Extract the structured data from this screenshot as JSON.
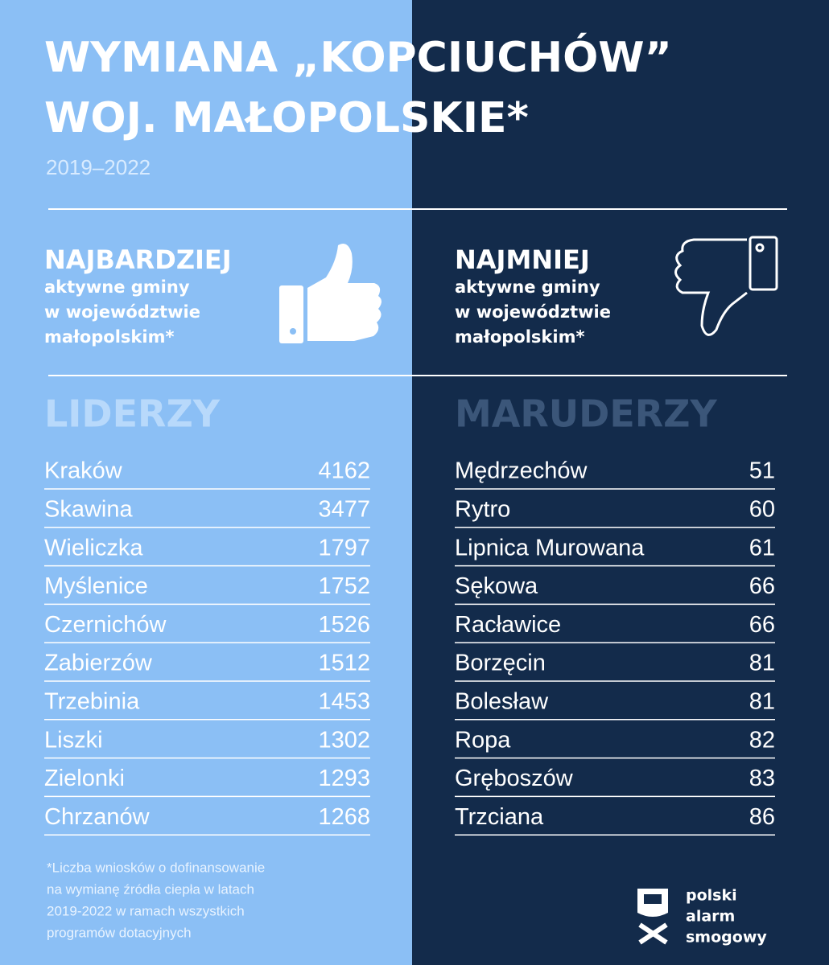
{
  "header": {
    "title_line1": "WYMIANA „KOPCIUCHÓW”",
    "title_line2": "WOJ. MAŁOPOLSKIE*",
    "subtitle": "2019–2022"
  },
  "left": {
    "heading": "NAJBARDZIEJ",
    "description": [
      "aktywne gminy",
      "w województwie",
      "małopolskim*"
    ],
    "label": "LIDERZY",
    "rows": [
      [
        "Kraków",
        4162
      ],
      [
        "Skawina",
        3477
      ],
      [
        "Wieliczka",
        1797
      ],
      [
        "Myślenice",
        1752
      ],
      [
        "Czernichów",
        1526
      ],
      [
        "Zabierzów",
        1512
      ],
      [
        "Trzebinia",
        1453
      ],
      [
        "Liszki",
        1302
      ],
      [
        "Zielonki",
        1293
      ],
      [
        "Chrzanów",
        1268
      ]
    ]
  },
  "right": {
    "heading": "NAJMNIEJ",
    "description": [
      "aktywne gminy",
      "w województwie",
      "małopolskim*"
    ],
    "label": "MARUDERZY",
    "rows": [
      [
        "Mędrzechów",
        51
      ],
      [
        "Rytro",
        60
      ],
      [
        "Lipnica Murowana",
        61
      ],
      [
        "Sękowa",
        66
      ],
      [
        "Racławice",
        66
      ],
      [
        "Borzęcin",
        81
      ],
      [
        "Bolesław",
        81
      ],
      [
        "Ropa",
        82
      ],
      [
        "Gręboszów",
        83
      ],
      [
        "Trzciana",
        86
      ]
    ]
  },
  "footnote": [
    "*Liczba wniosków o dofinansowanie",
    "na wymianę źródła ciepła w latach",
    "2019-2022 w ramach wszystkich",
    "programów dotacyjnych"
  ],
  "logo": [
    "polski",
    "alarm",
    "smogowy"
  ]
}
